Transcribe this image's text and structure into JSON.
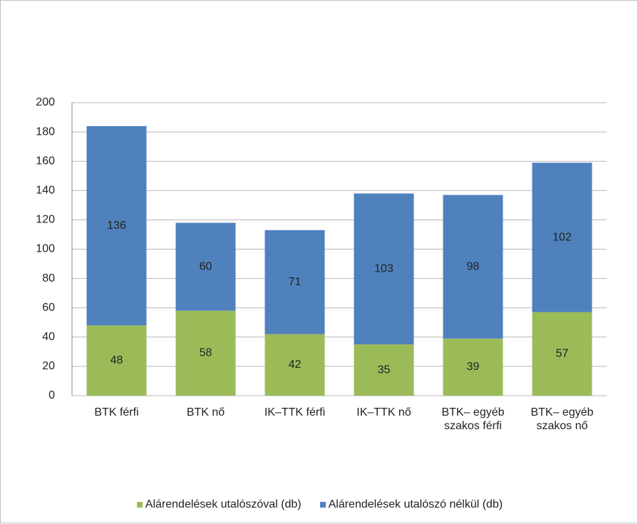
{
  "chart_data": {
    "type": "stacked_bar",
    "categories": [
      "BTK férfi",
      "BTK nő",
      "IK–TTK férfi",
      "IK–TTK nő",
      "BTK– egyéb szakos férfi",
      "BTK– egyéb szakos nő"
    ],
    "series": [
      {
        "name": "Alárendelések utalószóval (db)",
        "color": "#9bbb59",
        "values": [
          48,
          58,
          42,
          35,
          39,
          57
        ]
      },
      {
        "name": "Alárendelések utalószó nélkül (db)",
        "color": "#4f81bd",
        "values": [
          136,
          60,
          71,
          103,
          98,
          102
        ]
      }
    ],
    "ylim": [
      0,
      200
    ],
    "yticks": [
      0,
      20,
      40,
      60,
      80,
      100,
      120,
      140,
      160,
      180,
      200
    ],
    "grid": true,
    "legend": "bottom"
  }
}
